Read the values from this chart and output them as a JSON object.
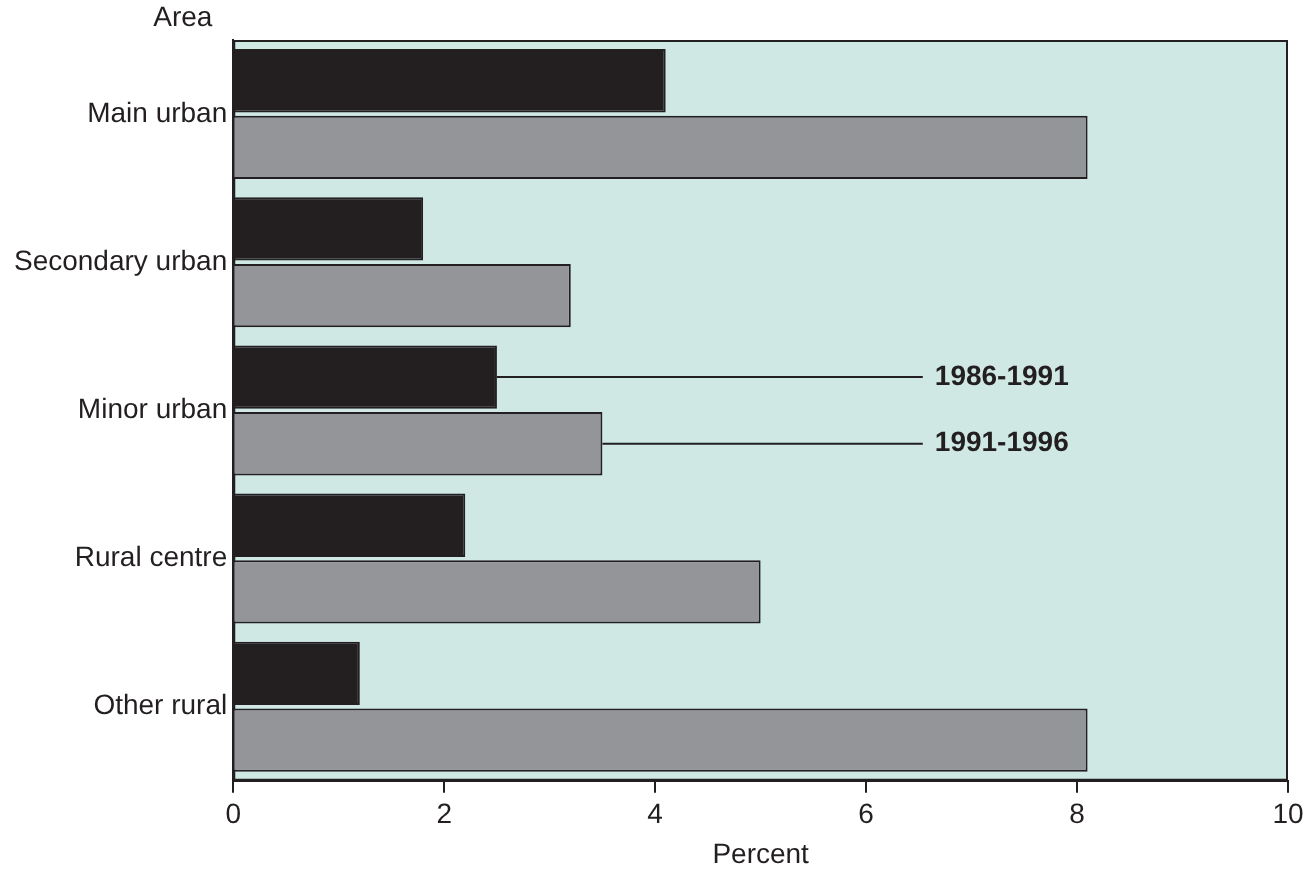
{
  "chart_data": {
    "type": "bar",
    "orientation": "horizontal",
    "ylabel": "Area",
    "xlabel": "Percent",
    "categories": [
      "Main urban",
      "Secondary urban",
      "Minor urban",
      "Rural centre",
      "Other rural"
    ],
    "series": [
      {
        "name": "1986-1991",
        "color": "#231f20",
        "values": [
          4.1,
          1.8,
          2.5,
          2.2,
          1.2
        ]
      },
      {
        "name": "1991-1996",
        "color": "#939598",
        "values": [
          8.1,
          3.2,
          3.5,
          5.0,
          8.1
        ]
      }
    ],
    "xlim": [
      0,
      10
    ],
    "xticks": [
      0,
      2,
      4,
      6,
      8,
      10
    ],
    "grid": false,
    "legend": false
  }
}
